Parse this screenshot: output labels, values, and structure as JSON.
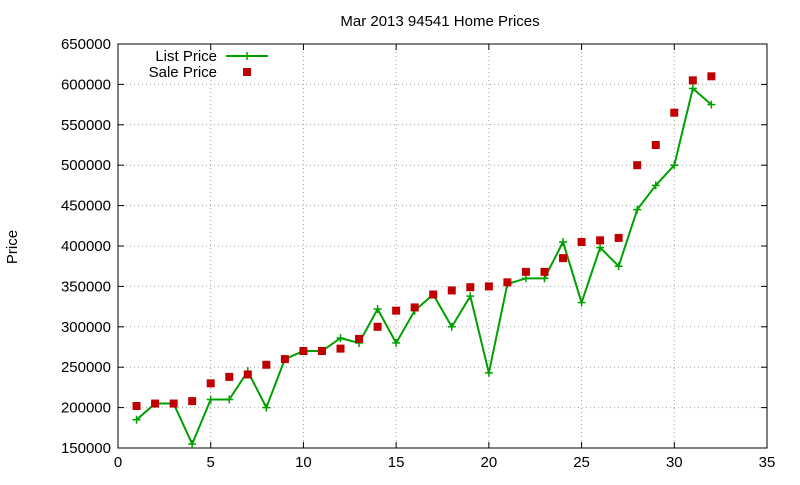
{
  "chart_data": {
    "type": "line",
    "title": "Mar 2013 94541 Home Prices",
    "xlabel": "",
    "ylabel": "Price",
    "xlim": [
      0,
      35
    ],
    "ylim": [
      150000,
      650000
    ],
    "xticks": [
      0,
      5,
      10,
      15,
      20,
      25,
      30,
      35
    ],
    "yticks": [
      150000,
      200000,
      250000,
      300000,
      350000,
      400000,
      450000,
      500000,
      550000,
      600000,
      650000
    ],
    "grid": true,
    "legend_position": "top-left",
    "series": [
      {
        "name": "List Price",
        "style": "line-plus",
        "color": "#00a000",
        "x": [
          1,
          2,
          3,
          4,
          5,
          6,
          7,
          8,
          9,
          10,
          11,
          12,
          13,
          14,
          15,
          16,
          17,
          18,
          19,
          20,
          21,
          22,
          23,
          24,
          25,
          26,
          27,
          28,
          29,
          30,
          31,
          32
        ],
        "y": [
          185000,
          205000,
          205000,
          155000,
          210000,
          210000,
          245000,
          200000,
          260000,
          270000,
          270000,
          286000,
          280000,
          322000,
          280000,
          320000,
          340000,
          300000,
          338000,
          243000,
          353000,
          360000,
          360000,
          405000,
          330000,
          398000,
          375000,
          445000,
          475000,
          500000,
          595000,
          575000
        ]
      },
      {
        "name": "Sale Price",
        "style": "points-square",
        "color": "#c00000",
        "x": [
          1,
          2,
          3,
          4,
          5,
          6,
          7,
          8,
          9,
          10,
          11,
          12,
          13,
          14,
          15,
          16,
          17,
          18,
          19,
          20,
          21,
          22,
          23,
          24,
          25,
          26,
          27,
          28,
          29,
          30,
          31,
          32
        ],
        "y": [
          202000,
          205000,
          205000,
          208000,
          230000,
          238000,
          241000,
          253000,
          260000,
          270000,
          270000,
          273000,
          285000,
          300000,
          320000,
          324000,
          340000,
          345000,
          349000,
          350000,
          355000,
          368000,
          368000,
          385000,
          405000,
          407000,
          410000,
          500000,
          525000,
          565000,
          605000,
          610000
        ]
      }
    ]
  }
}
